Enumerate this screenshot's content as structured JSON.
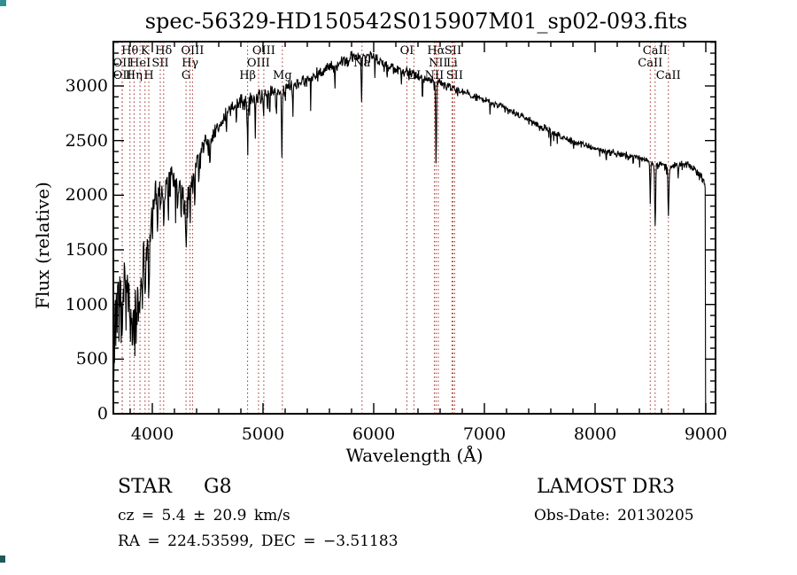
{
  "window": {
    "kind": "spectrum-quicklook-plot"
  },
  "title": "spec-56329-HD150542S015907M01_sp02-093.fits",
  "footer": {
    "objtype": "STAR",
    "subclass": "G8",
    "cz_line": "cz = 5.4 ± 20.9 km/s",
    "radec_line": "RA = 224.53599, DEC =  −3.51183",
    "survey": "LAMOST DR3",
    "obsdate_line": "Obs-Date: 20130205"
  },
  "colors": {
    "spectrum": "#000000",
    "axis": "#000000",
    "line_markers": "#a03028",
    "background": "#ffffff"
  },
  "chart_data": {
    "type": "line",
    "title": "spec-56329-HD150542S015907M01_sp02-093.fits",
    "xlabel": "Wavelength (Å)",
    "ylabel": "Flux (relative)",
    "xlim": [
      3648,
      9088
    ],
    "ylim": [
      0,
      3405
    ],
    "x_ticks": [
      4000,
      5000,
      6000,
      7000,
      8000,
      9000
    ],
    "x_minor_step": 200,
    "y_ticks": [
      0,
      500,
      1000,
      1500,
      2000,
      2500,
      3000
    ],
    "y_minor_step": 100,
    "grid": false,
    "legend": "none",
    "series": [
      {
        "name": "spectrum",
        "style": "noisy-line",
        "continuum_points": [
          [
            3650,
            750
          ],
          [
            3665,
            950
          ],
          [
            3680,
            1050
          ],
          [
            3700,
            1150
          ],
          [
            3720,
            1050
          ],
          [
            3740,
            1150
          ],
          [
            3760,
            1250
          ],
          [
            3780,
            1150
          ],
          [
            3800,
            1050
          ],
          [
            3830,
            950
          ],
          [
            3860,
            1050
          ],
          [
            3890,
            1150
          ],
          [
            3915,
            1400
          ],
          [
            3940,
            1450
          ],
          [
            3970,
            1550
          ],
          [
            4000,
            1900
          ],
          [
            4040,
            2050
          ],
          [
            4080,
            2000
          ],
          [
            4120,
            2050
          ],
          [
            4160,
            2150
          ],
          [
            4200,
            2150
          ],
          [
            4250,
            2100
          ],
          [
            4300,
            1950
          ],
          [
            4350,
            2100
          ],
          [
            4400,
            2300
          ],
          [
            4450,
            2400
          ],
          [
            4500,
            2500
          ],
          [
            4550,
            2570
          ],
          [
            4600,
            2650
          ],
          [
            4650,
            2720
          ],
          [
            4700,
            2790
          ],
          [
            4750,
            2830
          ],
          [
            4800,
            2860
          ],
          [
            4850,
            2850
          ],
          [
            4900,
            2880
          ],
          [
            4950,
            2900
          ],
          [
            5000,
            2920
          ],
          [
            5050,
            2940
          ],
          [
            5100,
            2960
          ],
          [
            5150,
            2940
          ],
          [
            5200,
            2980
          ],
          [
            5300,
            3020
          ],
          [
            5400,
            3060
          ],
          [
            5500,
            3120
          ],
          [
            5600,
            3160
          ],
          [
            5700,
            3210
          ],
          [
            5800,
            3260
          ],
          [
            5880,
            3280
          ],
          [
            5950,
            3290
          ],
          [
            6000,
            3270
          ],
          [
            6050,
            3230
          ],
          [
            6100,
            3200
          ],
          [
            6200,
            3160
          ],
          [
            6300,
            3130
          ],
          [
            6400,
            3090
          ],
          [
            6500,
            3060
          ],
          [
            6600,
            3030
          ],
          [
            6700,
            2990
          ],
          [
            6800,
            2950
          ],
          [
            6900,
            2910
          ],
          [
            7000,
            2870
          ],
          [
            7100,
            2830
          ],
          [
            7200,
            2790
          ],
          [
            7300,
            2740
          ],
          [
            7400,
            2690
          ],
          [
            7500,
            2630
          ],
          [
            7600,
            2580
          ],
          [
            7700,
            2530
          ],
          [
            7800,
            2490
          ],
          [
            7900,
            2460
          ],
          [
            8000,
            2430
          ],
          [
            8100,
            2400
          ],
          [
            8200,
            2380
          ],
          [
            8300,
            2360
          ],
          [
            8400,
            2340
          ],
          [
            8450,
            2330
          ],
          [
            8520,
            2300
          ],
          [
            8600,
            2280
          ],
          [
            8700,
            2260
          ],
          [
            8800,
            2280
          ],
          [
            8850,
            2270
          ],
          [
            8900,
            2240
          ],
          [
            8950,
            2180
          ],
          [
            8985,
            2130
          ],
          [
            8994,
            2100
          ],
          [
            9000,
            0
          ]
        ],
        "noise_envelope": [
          [
            3650,
            320
          ],
          [
            3750,
            300
          ],
          [
            3850,
            280
          ],
          [
            3950,
            230
          ],
          [
            4050,
            180
          ],
          [
            4200,
            150
          ],
          [
            4350,
            130
          ],
          [
            4500,
            110
          ],
          [
            4700,
            100
          ],
          [
            4900,
            95
          ],
          [
            5100,
            85
          ],
          [
            5300,
            75
          ],
          [
            5500,
            70
          ],
          [
            5800,
            65
          ],
          [
            6100,
            60
          ],
          [
            6400,
            55
          ],
          [
            6700,
            50
          ],
          [
            7000,
            48
          ],
          [
            7500,
            42
          ],
          [
            8000,
            38
          ],
          [
            8500,
            42
          ],
          [
            8800,
            45
          ],
          [
            9000,
            40
          ]
        ],
        "absorption_features": [
          [
            3727,
            350,
            5
          ],
          [
            3798,
            300,
            5
          ],
          [
            3835,
            350,
            5
          ],
          [
            3889,
            250,
            5
          ],
          [
            3934,
            500,
            6
          ],
          [
            3969,
            420,
            6
          ],
          [
            4072,
            200,
            4
          ],
          [
            4102,
            320,
            5
          ],
          [
            4227,
            250,
            4
          ],
          [
            4305,
            380,
            9
          ],
          [
            4341,
            260,
            5
          ],
          [
            4383,
            250,
            4
          ],
          [
            4861,
            340,
            5
          ],
          [
            4930,
            300,
            4
          ],
          [
            5170,
            620,
            5
          ],
          [
            5270,
            250,
            4
          ],
          [
            5890,
            440,
            5
          ],
          [
            6563,
            830,
            5
          ],
          [
            8498,
            340,
            5
          ],
          [
            8542,
            560,
            6
          ],
          [
            8662,
            460,
            6
          ],
          [
            3700,
            400,
            3
          ],
          [
            3760,
            450,
            3
          ],
          [
            3820,
            500,
            3
          ],
          [
            3910,
            300,
            3
          ],
          [
            4000,
            350,
            3
          ],
          [
            4045,
            500,
            3
          ],
          [
            4144,
            450,
            3
          ],
          [
            4210,
            400,
            3
          ],
          [
            4260,
            350,
            3
          ],
          [
            4420,
            300,
            3
          ],
          [
            4520,
            280,
            3
          ],
          [
            4668,
            250,
            3
          ],
          [
            4760,
            300,
            3
          ],
          [
            5005,
            280,
            3
          ],
          [
            5060,
            300,
            3
          ],
          [
            5120,
            280,
            3
          ],
          [
            5430,
            250,
            3
          ],
          [
            5650,
            200,
            3
          ],
          [
            6010,
            180,
            3
          ],
          [
            6120,
            150,
            3
          ],
          [
            6250,
            120,
            3
          ],
          [
            6440,
            280,
            3
          ],
          [
            7050,
            120,
            3
          ],
          [
            7600,
            100,
            3
          ],
          [
            8100,
            80,
            3
          ],
          [
            8750,
            120,
            3
          ]
        ],
        "blue_edge_ramp": [
          3646,
          3662
        ],
        "red_cutoff": 8994
      }
    ],
    "spectral_lines": [
      {
        "label": "Hθ",
        "wavelength": 3798,
        "row": 1
      },
      {
        "label": "K",
        "wavelength": 3934,
        "row": 1
      },
      {
        "label": "Hδ",
        "wavelength": 4102,
        "row": 1
      },
      {
        "label": "OIII",
        "wavelength": 4363,
        "row": 1
      },
      {
        "label": "OIII",
        "wavelength": 5007,
        "row": 1
      },
      {
        "label": "OI",
        "wavelength": 6300,
        "row": 1
      },
      {
        "label": "Hα",
        "wavelength": 6563,
        "row": 1
      },
      {
        "label": "SII",
        "wavelength": 6716,
        "row": 1
      },
      {
        "label": "CaII",
        "wavelength": 8542,
        "row": 1
      },
      {
        "label": "OII",
        "wavelength": 3727,
        "row": 2
      },
      {
        "label": "HeI",
        "wavelength": 3889,
        "row": 2
      },
      {
        "label": "SII",
        "wavelength": 4072,
        "row": 2
      },
      {
        "label": "Hγ",
        "wavelength": 4341,
        "row": 2
      },
      {
        "label": "OIII",
        "wavelength": 4959,
        "row": 2
      },
      {
        "label": "Na",
        "wavelength": 5894,
        "row": 2
      },
      {
        "label": "NII",
        "wavelength": 6583,
        "row": 2
      },
      {
        "label": "Li",
        "wavelength": 6707,
        "row": 2
      },
      {
        "label": "CaII",
        "wavelength": 8498,
        "row": 2
      },
      {
        "label": "OII",
        "wavelength": 3729,
        "row": 3
      },
      {
        "label": "Hη",
        "wavelength": 3835,
        "row": 3
      },
      {
        "label": "H",
        "wavelength": 3968,
        "row": 3
      },
      {
        "label": "G",
        "wavelength": 4305,
        "row": 3
      },
      {
        "label": "Hβ",
        "wavelength": 4861,
        "row": 3
      },
      {
        "label": "Mg",
        "wavelength": 5175,
        "row": 3
      },
      {
        "label": "OI",
        "wavelength": 6363,
        "row": 3
      },
      {
        "label": "NII",
        "wavelength": 6548,
        "row": 3
      },
      {
        "label": "SII",
        "wavelength": 6731,
        "row": 3
      },
      {
        "label": "CaII",
        "wavelength": 8662,
        "row": 3
      }
    ]
  }
}
